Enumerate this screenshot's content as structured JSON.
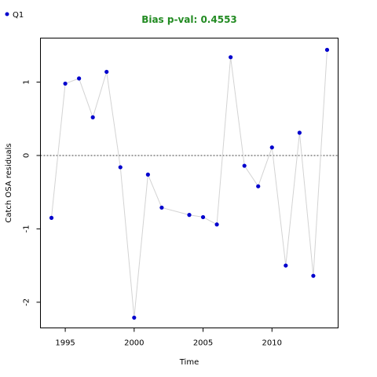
{
  "chart_data": {
    "type": "line",
    "title": "Bias p-val: 0.4553",
    "title_color": "#228B22",
    "xlabel": "Time",
    "ylabel": "Catch OSA residuals",
    "xlim": [
      1993.2,
      2014.8
    ],
    "ylim": [
      -2.35,
      1.6
    ],
    "x_ticks": [
      1995,
      2000,
      2005,
      2010
    ],
    "y_ticks": [
      -2,
      -1,
      0,
      1
    ],
    "reference_line": 0,
    "grid": false,
    "legend": {
      "position": "top-left",
      "entries": [
        "Q1"
      ]
    },
    "series": [
      {
        "name": "Q1",
        "point_color": "#0000CD",
        "line_color": "#d3d3d3",
        "points": [
          {
            "x": 1994,
            "y": -0.85
          },
          {
            "x": 1995,
            "y": 0.98
          },
          {
            "x": 1996,
            "y": 1.05
          },
          {
            "x": 1997,
            "y": 0.52
          },
          {
            "x": 1998,
            "y": 1.14
          },
          {
            "x": 1999,
            "y": -0.16
          },
          {
            "x": 2000,
            "y": -2.21
          },
          {
            "x": 2001,
            "y": -0.26
          },
          {
            "x": 2002,
            "y": -0.71
          },
          {
            "x": 2004,
            "y": -0.81
          },
          {
            "x": 2005,
            "y": -0.84
          },
          {
            "x": 2006,
            "y": -0.94
          },
          {
            "x": 2007,
            "y": 1.34
          },
          {
            "x": 2008,
            "y": -0.14
          },
          {
            "x": 2009,
            "y": -0.42
          },
          {
            "x": 2010,
            "y": 0.11
          },
          {
            "x": 2011,
            "y": -1.5
          },
          {
            "x": 2012,
            "y": 0.31
          },
          {
            "x": 2013,
            "y": -1.64
          },
          {
            "x": 2014,
            "y": 1.44
          }
        ]
      }
    ]
  }
}
